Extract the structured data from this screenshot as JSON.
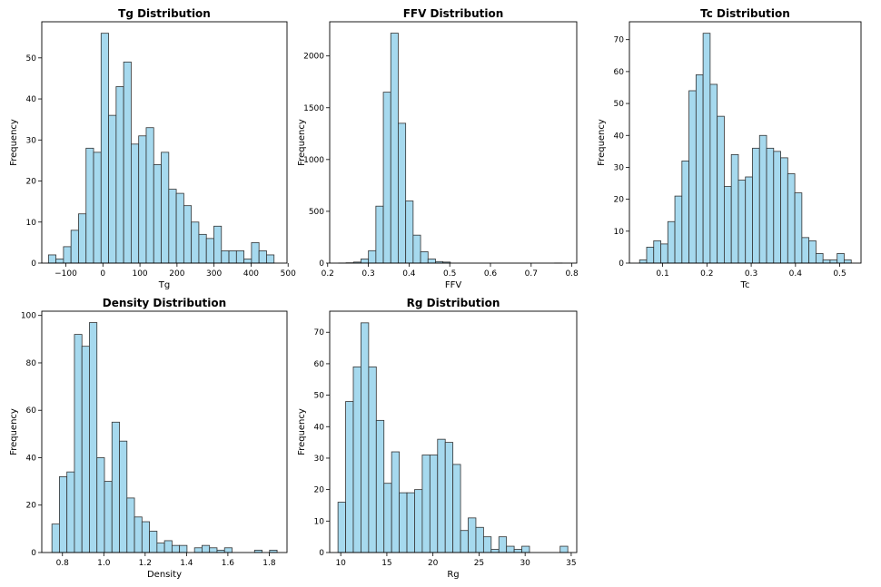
{
  "figure": {
    "background": "#ffffff",
    "bar_fill": "#a6d9ee",
    "bar_edge": "#333333"
  },
  "chart_data": [
    {
      "type": "bar",
      "title": "Tg Distribution",
      "xlabel": "Tg",
      "ylabel": "Frequency",
      "xlim": [
        -165,
        497
      ],
      "ylim": [
        0,
        58.8
      ],
      "xticks": [
        -100,
        0,
        100,
        200,
        300,
        400,
        500
      ],
      "xticklabels": [
        "−100",
        "0",
        "100",
        "200",
        "300",
        "400",
        "500"
      ],
      "yticks": [
        0,
        10,
        20,
        30,
        40,
        50
      ],
      "bin_start": -147,
      "bin_width": 20.3,
      "values": [
        2,
        1,
        4,
        8,
        12,
        28,
        27,
        56,
        36,
        43,
        49,
        29,
        31,
        33,
        24,
        27,
        18,
        17,
        14,
        10,
        7,
        6,
        9,
        3,
        3,
        3,
        1,
        5,
        3,
        2
      ]
    },
    {
      "type": "bar",
      "title": "FFV Distribution",
      "xlabel": "FFV",
      "ylabel": "Frequency",
      "xlim": [
        0.205,
        0.812
      ],
      "ylim": [
        0,
        2330
      ],
      "xticks": [
        0.2,
        0.3,
        0.4,
        0.5,
        0.6,
        0.7,
        0.8
      ],
      "xticklabels": [
        "0.2",
        "0.3",
        "0.4",
        "0.5",
        "0.6",
        "0.7",
        "0.8"
      ],
      "yticks": [
        0,
        500,
        1000,
        1500,
        2000
      ],
      "bin_start": 0.227,
      "bin_width": 0.0183,
      "values": [
        1,
        3,
        10,
        40,
        120,
        550,
        1650,
        2220,
        1350,
        600,
        270,
        110,
        40,
        15,
        10,
        0,
        0,
        0,
        0,
        0,
        0,
        0,
        0,
        0,
        0,
        0,
        0,
        0,
        0,
        1
      ]
    },
    {
      "type": "bar",
      "title": "Tc Distribution",
      "xlabel": "Tc",
      "ylabel": "Frequency",
      "xlim": [
        0.025,
        0.548
      ],
      "ylim": [
        0,
        75.6
      ],
      "xticks": [
        0.1,
        0.2,
        0.3,
        0.4,
        0.5
      ],
      "xticklabels": [
        "0.1",
        "0.2",
        "0.3",
        "0.4",
        "0.5"
      ],
      "yticks": [
        0,
        10,
        20,
        30,
        40,
        50,
        60,
        70
      ],
      "bin_start": 0.048,
      "bin_width": 0.01593,
      "values": [
        1,
        5,
        7,
        6,
        13,
        21,
        32,
        54,
        59,
        72,
        56,
        46,
        24,
        34,
        26,
        27,
        36,
        40,
        36,
        35,
        33,
        28,
        22,
        8,
        7,
        3,
        1,
        1,
        3,
        1
      ]
    },
    {
      "type": "bar",
      "title": "Density Distribution",
      "xlabel": "Density",
      "ylabel": "Frequency",
      "xlim": [
        0.7,
        1.886
      ],
      "ylim": [
        0,
        101.8
      ],
      "xticks": [
        0.8,
        1.0,
        1.2,
        1.4,
        1.6,
        1.8
      ],
      "xticklabels": [
        "0.8",
        "1.0",
        "1.2",
        "1.4",
        "1.6",
        "1.8"
      ],
      "yticks": [
        0,
        20,
        40,
        60,
        80,
        100
      ],
      "bin_start": 0.749,
      "bin_width": 0.0363,
      "values": [
        12,
        32,
        34,
        92,
        87,
        97,
        40,
        30,
        55,
        47,
        23,
        15,
        13,
        9,
        4,
        5,
        3,
        3,
        0,
        2,
        3,
        2,
        1,
        2,
        0,
        0,
        0,
        1,
        0,
        1
      ]
    },
    {
      "type": "bar",
      "title": "Rg Distribution",
      "xlabel": "Rg",
      "ylabel": "Frequency",
      "xlim": [
        8.8,
        35.6
      ],
      "ylim": [
        0,
        76.7
      ],
      "xticks": [
        10,
        15,
        20,
        25,
        30,
        35
      ],
      "xticklabels": [
        "10",
        "15",
        "20",
        "25",
        "30",
        "35"
      ],
      "yticks": [
        0,
        10,
        20,
        30,
        40,
        50,
        60,
        70
      ],
      "bin_start": 9.7,
      "bin_width": 0.831,
      "values": [
        16,
        48,
        59,
        73,
        59,
        42,
        22,
        32,
        19,
        19,
        20,
        31,
        31,
        36,
        35,
        28,
        7,
        11,
        8,
        5,
        1,
        5,
        2,
        1,
        2,
        0,
        0,
        0,
        0,
        2
      ]
    }
  ]
}
